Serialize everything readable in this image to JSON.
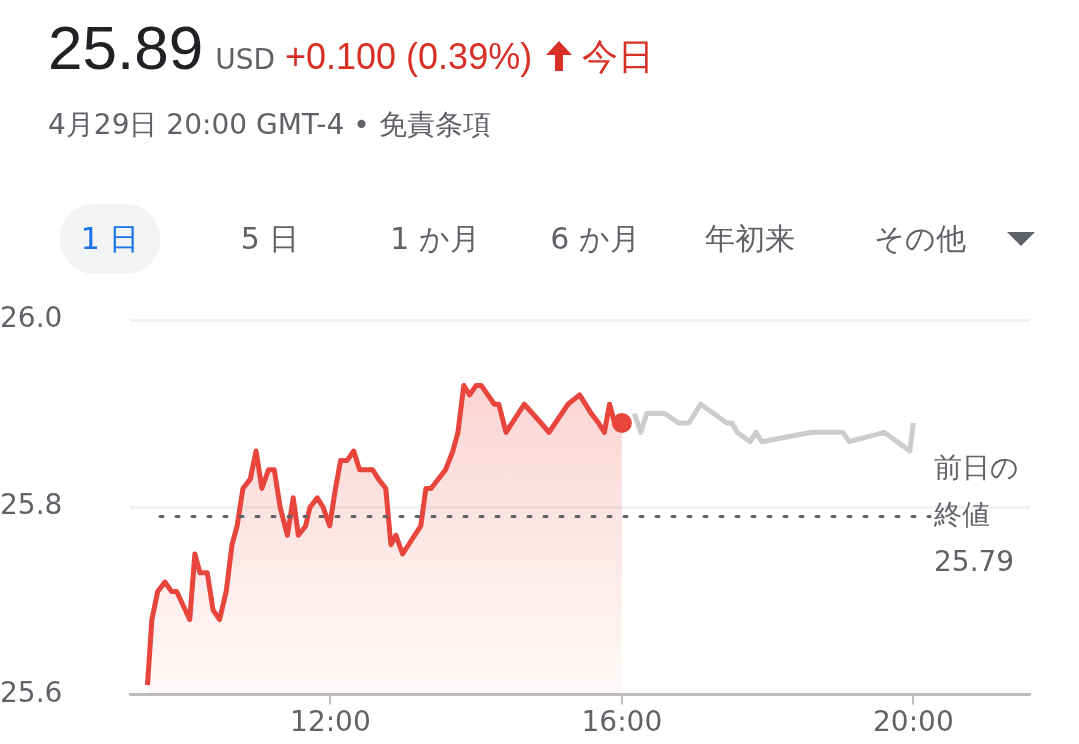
{
  "chart_data": {
    "type": "line",
    "title": "25.89",
    "subtitle": "4月29日 20:00 GMT-4 • 免責条項",
    "annotations": [
      "USD",
      "+0.100 (0.39%)",
      "今日",
      "1 日",
      "5 日",
      "1 か月",
      "6 か月",
      "年初来",
      "その他"
    ],
    "series": [
      {
        "type": "area",
        "color": "#e8453c",
        "x": [
          9.49,
          9.55,
          9.63,
          9.73,
          9.82,
          9.89,
          10.07,
          10.14,
          10.21,
          10.31,
          10.39,
          10.48,
          10.57,
          10.65,
          10.72,
          10.8,
          10.9,
          10.98,
          11.06,
          11.15,
          11.23,
          11.31,
          11.41,
          11.49,
          11.56,
          11.66,
          11.72,
          11.82,
          11.9,
          11.99,
          12.07,
          12.14,
          12.23,
          12.32,
          12.4,
          12.58,
          12.66,
          12.76,
          12.83,
          12.9,
          12.99,
          13.24,
          13.31,
          13.38,
          13.58,
          13.68,
          13.75,
          13.83,
          13.91,
          14.0,
          14.07,
          14.25,
          14.31,
          14.41,
          14.66,
          14.89,
          15.0,
          15.26,
          15.42,
          15.58,
          15.68,
          15.76,
          15.83,
          15.9,
          16.0
        ],
        "values": [
          25.61,
          25.68,
          25.71,
          25.72,
          25.71,
          25.71,
          25.68,
          25.75,
          25.73,
          25.73,
          25.69,
          25.68,
          25.71,
          25.76,
          25.78,
          25.82,
          25.83,
          25.86,
          25.82,
          25.84,
          25.84,
          25.8,
          25.77,
          25.81,
          25.77,
          25.78,
          25.8,
          25.81,
          25.8,
          25.78,
          25.82,
          25.85,
          25.85,
          25.86,
          25.84,
          25.84,
          25.83,
          25.82,
          25.76,
          25.77,
          25.75,
          25.78,
          25.82,
          25.82,
          25.84,
          25.86,
          25.88,
          25.93,
          25.92,
          25.93,
          25.93,
          25.91,
          25.91,
          25.88,
          25.91,
          25.89,
          25.88,
          25.91,
          25.92,
          25.9,
          25.89,
          25.88,
          25.91,
          25.89,
          25.89
        ]
      },
      {
        "color": "#cccccc",
        "x": [
          16.17,
          16.26,
          16.34,
          16.59,
          16.78,
          16.92,
          17.08,
          17.44,
          17.51,
          17.58,
          17.76,
          17.84,
          17.92,
          18.61,
          19.03,
          19.12,
          19.6,
          19.95,
          20.0
        ],
        "values": [
          25.9,
          25.88,
          25.9,
          25.9,
          25.89,
          25.89,
          25.91,
          25.89,
          25.89,
          25.88,
          25.87,
          25.88,
          25.87,
          25.88,
          25.88,
          25.87,
          25.88,
          25.86,
          25.89
        ]
      }
    ],
    "xlim": [
      9.25,
      21.6
    ],
    "xticks": [
      {
        "value": 12,
        "label": "12:00"
      },
      {
        "value": 16,
        "label": "16:00"
      },
      {
        "value": 20,
        "label": "20:00"
      }
    ],
    "ylim": [
      25.6,
      26.0
    ],
    "yticks": [
      25.6,
      25.8,
      {
        "value": 26,
        "label": "26.0"
      }
    ],
    "ref_lines": [
      {
        "axis": "y",
        "value": 25.79,
        "label": "前日の終値 25.79",
        "color": "#5f6368",
        "line_style": "dotted"
      }
    ],
    "grid": "y",
    "legend": false
  }
}
